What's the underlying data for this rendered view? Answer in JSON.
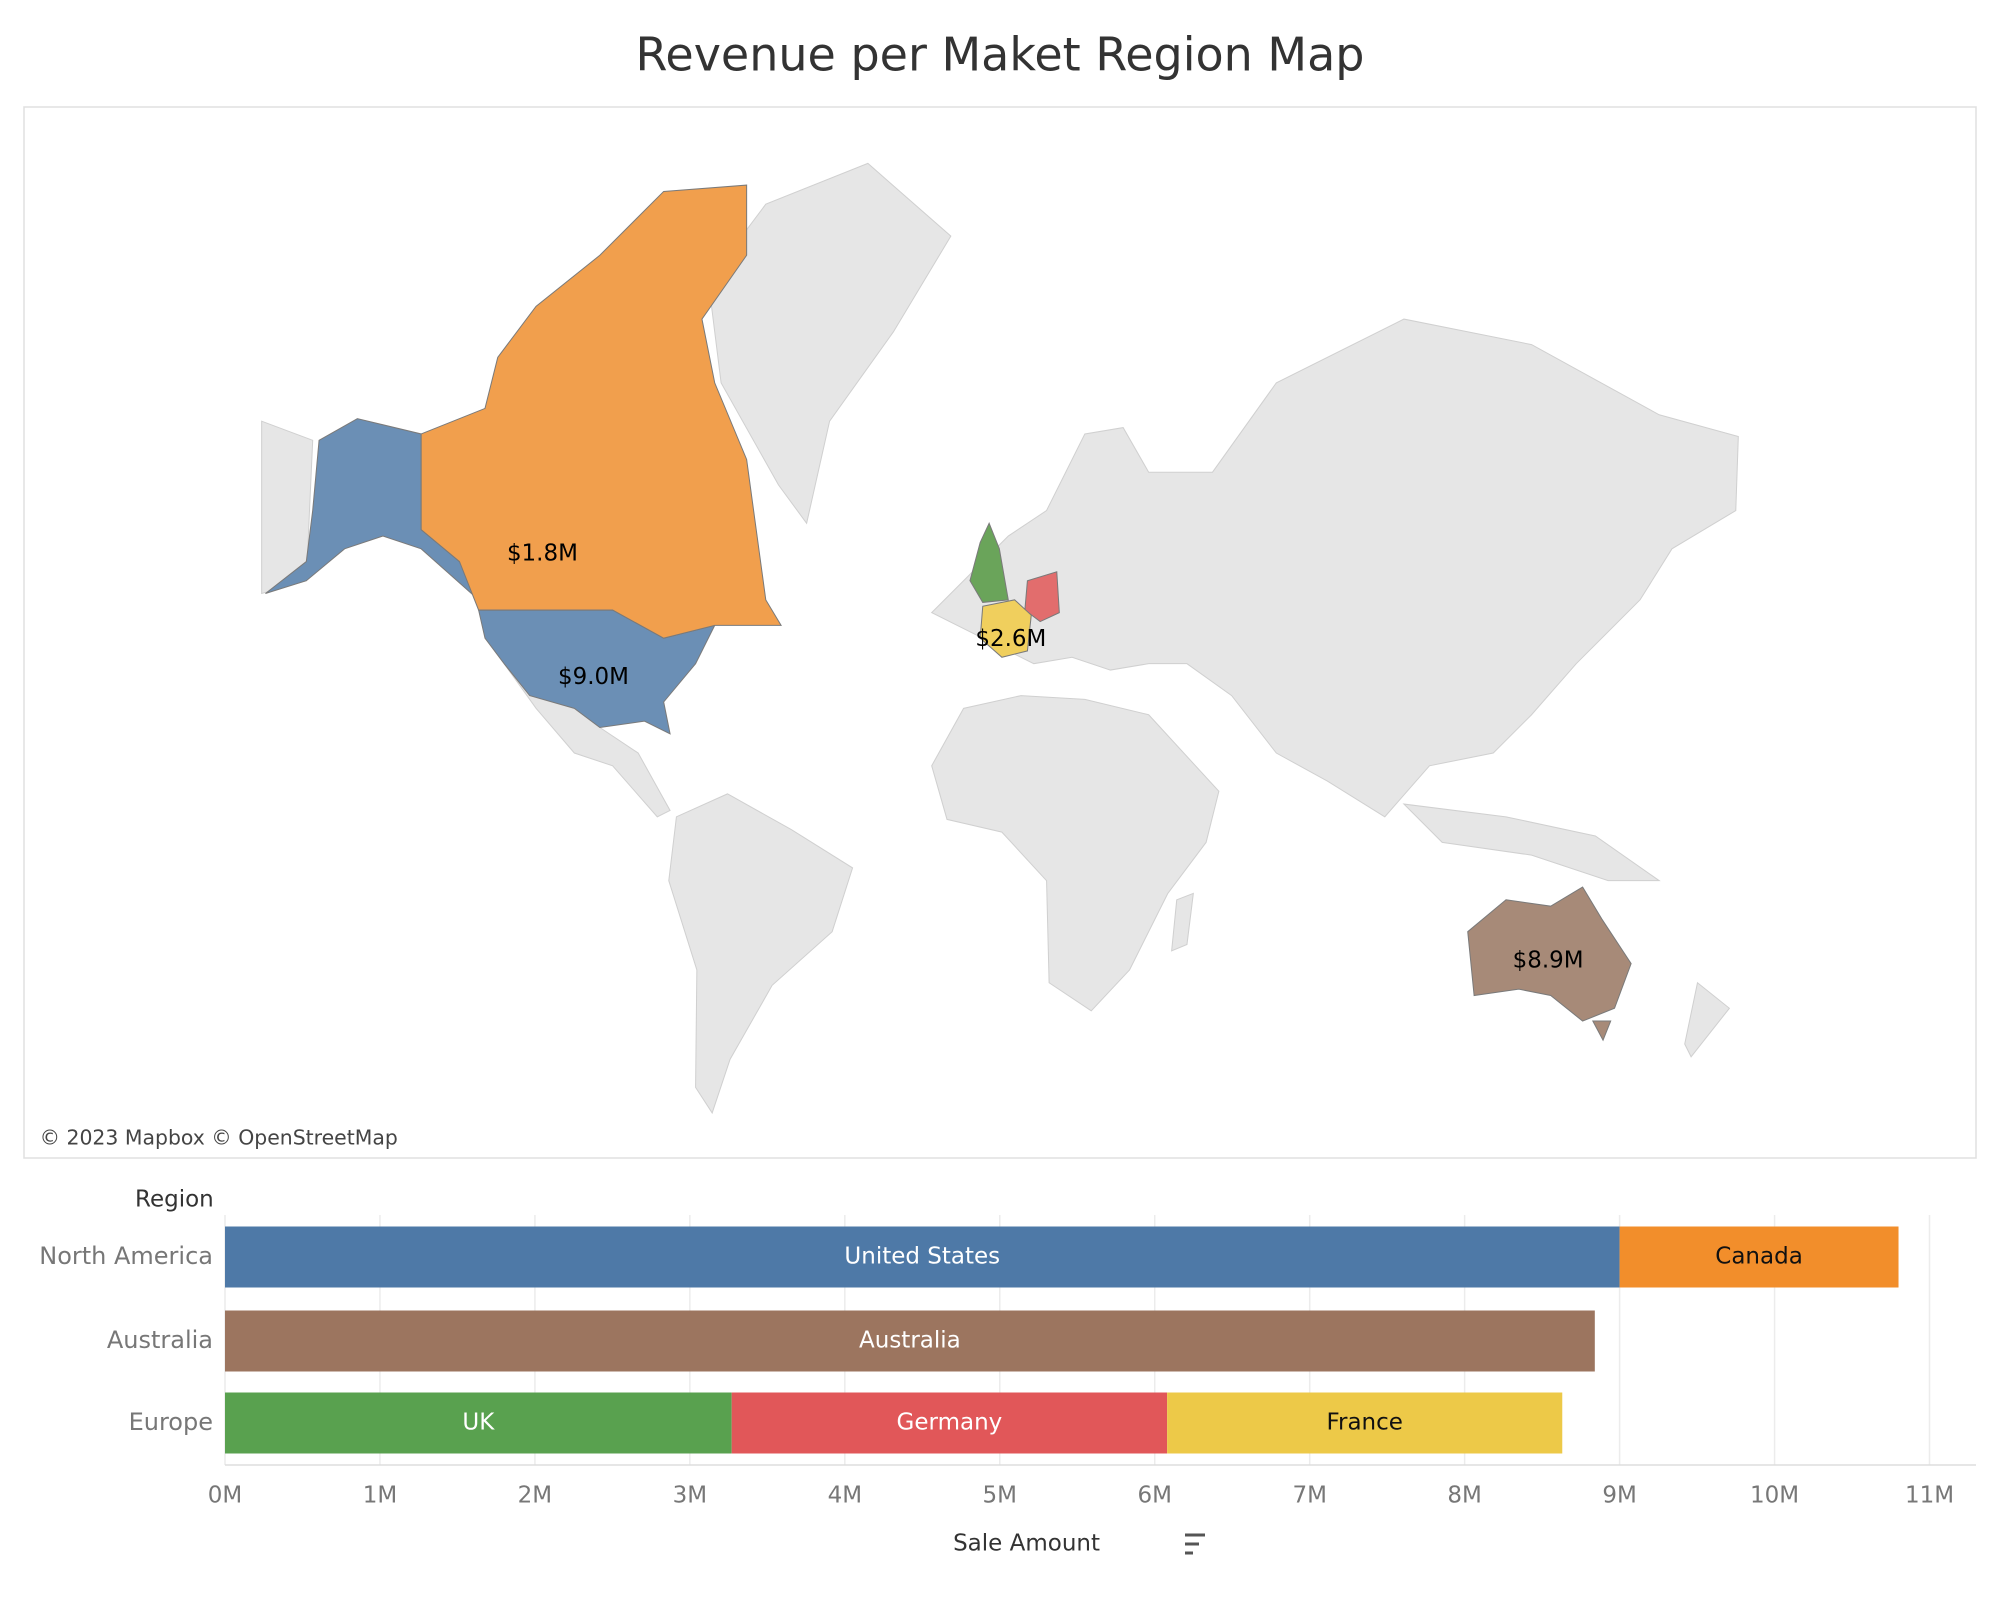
{
  "title": "Revenue per Maket Region Map",
  "chart_data": [
    {
      "type": "map",
      "values": [
        9.0,
        1.8,
        2.6,
        8.9
      ],
      "value_labels": [
        "$9.0M",
        "$1.8M",
        "$2.6M",
        "$8.9M"
      ],
      "colors": [
        "#6b8fb5",
        "#f19f4d",
        "#f0cf5d",
        "#a78a78"
      ],
      "attribution": "© 2023 Mapbox © OpenStreetMap"
    },
    {
      "type": "stacked-bar-horizontal",
      "y_label": "Region",
      "x_label": "Sale Amount",
      "categories": [
        "North America",
        "Australia",
        "Europe"
      ],
      "series": [
        {
          "name": "United States",
          "color": "#4e79a7",
          "values": [
            9.0,
            null,
            null
          ]
        },
        {
          "name": "Canada",
          "color": "#f28e2b",
          "values": [
            1.8,
            null,
            null
          ]
        },
        {
          "name": "Australia",
          "color": "#9c755f",
          "values": [
            null,
            8.84,
            null
          ]
        },
        {
          "name": "UK",
          "color": "#59a14f",
          "values": [
            null,
            null,
            3.27
          ]
        },
        {
          "name": "Germany",
          "color": "#e15759",
          "values": [
            null,
            null,
            2.81
          ]
        },
        {
          "name": "France",
          "color": "#edc948",
          "values": [
            null,
            null,
            2.55
          ]
        }
      ],
      "xlim": [
        0,
        11.3
      ],
      "xticks": [
        {
          "value": 0,
          "label": "0M"
        },
        {
          "value": 1,
          "label": "1M"
        },
        {
          "value": 2,
          "label": "2M"
        },
        {
          "value": 3,
          "label": "3M"
        },
        {
          "value": 4,
          "label": "4M"
        },
        {
          "value": 5,
          "label": "5M"
        },
        {
          "value": 6,
          "label": "6M"
        },
        {
          "value": 7,
          "label": "7M"
        },
        {
          "value": 8,
          "label": "8M"
        },
        {
          "value": 9,
          "label": "9M"
        },
        {
          "value": 10,
          "label": "10M"
        },
        {
          "value": 11,
          "label": "11M"
        }
      ],
      "grid": true
    }
  ]
}
